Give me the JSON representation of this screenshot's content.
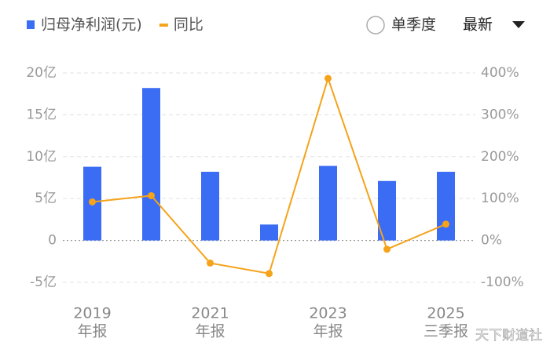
{
  "chart_data": {
    "type": "bar",
    "categories": [
      [
        "2019",
        "年报"
      ],
      null,
      [
        "2021",
        "年报"
      ],
      null,
      [
        "2023",
        "年报"
      ],
      null,
      [
        "2025",
        "三季报"
      ]
    ],
    "series": [
      {
        "name": "归母净利润(元)",
        "type": "bar",
        "color": "#3a6cf4",
        "values": [
          8.8,
          18.2,
          8.2,
          1.9,
          8.9,
          7.1,
          8.2
        ]
      },
      {
        "name": "同比",
        "type": "line",
        "axis": "y2",
        "color": "#f5a31a",
        "values": [
          92,
          107,
          -54,
          -79,
          387,
          -21,
          39
        ]
      }
    ],
    "ylim": [
      -5,
      20
    ],
    "yticks": [
      {
        "value": -5,
        "label": "-5亿"
      },
      0,
      {
        "value": 5,
        "label": "5亿"
      },
      {
        "value": 10,
        "label": "10亿"
      },
      {
        "value": 15,
        "label": "15亿"
      },
      {
        "value": 20,
        "label": "20亿"
      }
    ],
    "y2lim": [
      -100,
      400
    ],
    "y2ticks": [
      {
        "value": -100,
        "label": "-100%"
      },
      {
        "value": 0,
        "label": "0%"
      },
      {
        "value": 100,
        "label": "100%"
      },
      {
        "value": 200,
        "label": "200%"
      },
      {
        "value": 300,
        "label": "300%"
      },
      {
        "value": 400,
        "label": "400%"
      }
    ],
    "grid": true,
    "controls": {
      "single_quarter": "单季度",
      "period": "最新"
    },
    "watermark": "天下财道社"
  }
}
